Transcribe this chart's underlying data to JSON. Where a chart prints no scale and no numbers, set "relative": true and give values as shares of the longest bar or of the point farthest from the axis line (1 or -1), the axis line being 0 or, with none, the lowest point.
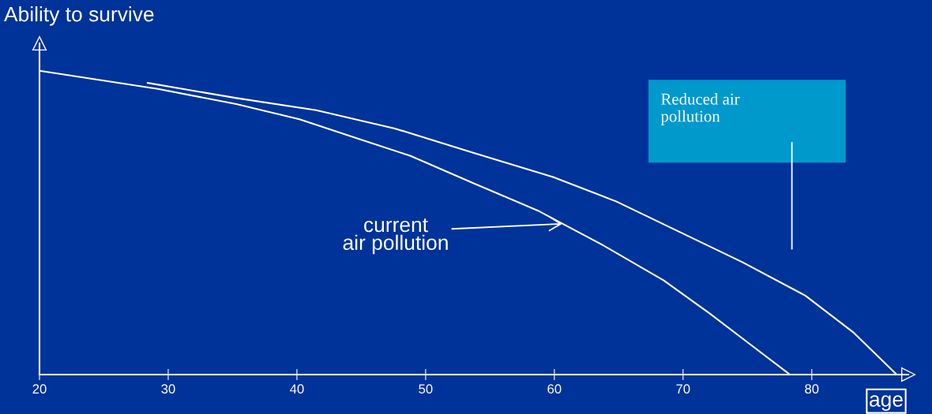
{
  "chart_data": {
    "type": "line",
    "relative": true,
    "ylabel": "Ability to survive",
    "xlabel": "age",
    "xlim": [
      20,
      87.5
    ],
    "xticks": [
      20,
      30,
      40,
      50,
      60,
      70,
      80
    ],
    "tick_labels": "x",
    "grid": false,
    "legend": false,
    "marker": "none",
    "line_style": "solid",
    "series": [
      {
        "color": "#ffffff",
        "x": [
          20,
          29.2,
          35.3,
          40.2,
          44.5,
          48.8,
          53.7,
          58.7,
          63.6,
          68.5,
          72.1,
          75.2,
          78.3
        ],
        "values": [
          1.0,
          0.94,
          0.89,
          0.84,
          0.78,
          0.72,
          0.63,
          0.54,
          0.43,
          0.31,
          0.2,
          0.1,
          0
        ]
      },
      {
        "color": "#ffffff",
        "x": [
          28.4,
          35.3,
          41.5,
          47.6,
          53.7,
          59.9,
          64.8,
          69.7,
          74.6,
          79.5,
          83.2,
          86.6
        ],
        "values": [
          0.96,
          0.91,
          0.87,
          0.81,
          0.73,
          0.65,
          0.57,
          0.47,
          0.37,
          0.26,
          0.14,
          0
        ]
      }
    ],
    "annotations": [
      "current\nair pollution",
      "Reduced air\npollution"
    ]
  }
}
